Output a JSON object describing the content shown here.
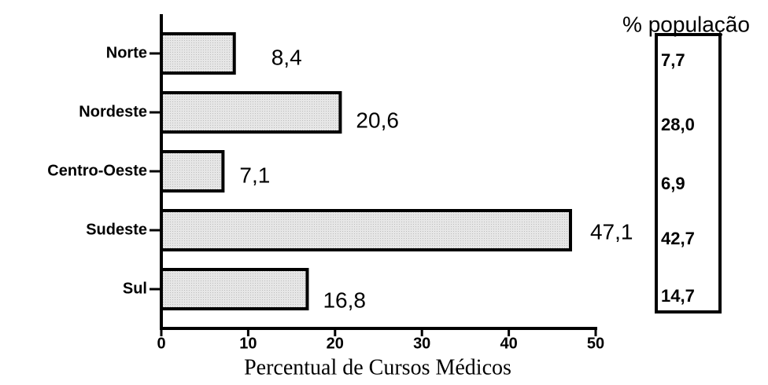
{
  "chart_data": {
    "type": "bar",
    "orientation": "horizontal",
    "categories": [
      "Norte",
      "Nordeste",
      "Centro-Oeste",
      "Sudeste",
      "Sul"
    ],
    "values": [
      8.4,
      20.6,
      7.1,
      47.1,
      16.8
    ],
    "value_labels": [
      "8,4",
      "20,6",
      "7,1",
      "47,1",
      "16,8"
    ],
    "color": "#d9d9d9",
    "xlim": [
      0,
      50
    ],
    "xticks": [
      0,
      10,
      20,
      30,
      40,
      50
    ],
    "xlabel": "Percentual de Cursos Médicos",
    "side_table": {
      "title": "% população",
      "labels": [
        "7,7",
        "28,0",
        "6,9",
        "42,7",
        "14,7"
      ]
    }
  }
}
